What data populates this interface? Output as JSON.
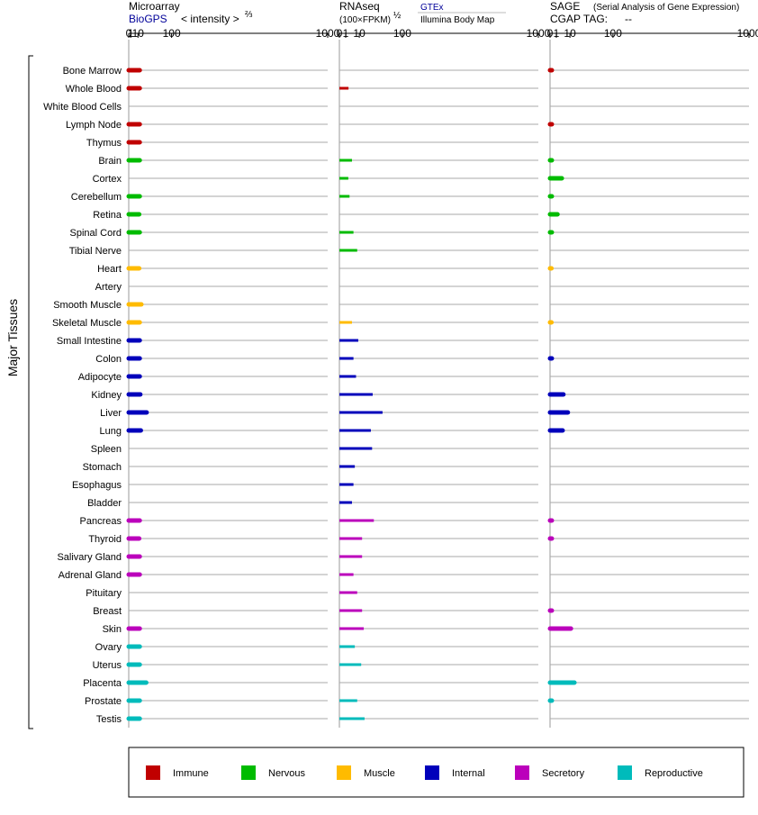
{
  "panels": {
    "microarray": {
      "title": "Microarray",
      "source": "BioGPS",
      "scale_label": "< intensity >",
      "scale_exp": "⅔",
      "ticks": [
        "0",
        "1",
        "10",
        "100",
        "1000"
      ]
    },
    "rnaseq": {
      "title": "RNAseq",
      "scale_label": "(100×FPKM)",
      "scale_exp": "½",
      "source1": "GTEx",
      "source2": "Illumina Body Map",
      "ticks": [
        "0",
        "1",
        "10",
        "100",
        "1000"
      ]
    },
    "sage": {
      "title": "SAGE",
      "subtitle": "(Serial Analysis of Gene Expression)",
      "cgap_label": "CGAP TAG:",
      "cgap_value": "--",
      "ticks": [
        "0",
        "1",
        "10",
        "100",
        "1000"
      ]
    }
  },
  "side_label": "Major Tissues",
  "legend": [
    {
      "name": "Immune",
      "color": "#c00000"
    },
    {
      "name": "Nervous",
      "color": "#00bb00"
    },
    {
      "name": "Muscle",
      "color": "#ffbb00"
    },
    {
      "name": "Internal",
      "color": "#0000bb"
    },
    {
      "name": "Secretory",
      "color": "#bb00bb"
    },
    {
      "name": "Reproductive",
      "color": "#00bbbb"
    }
  ],
  "chart_data": {
    "type": "bar",
    "x_scale": "power",
    "xlim": [
      0,
      1000
    ],
    "categories": [
      "Bone Marrow",
      "Whole Blood",
      "White Blood Cells",
      "Lymph Node",
      "Thymus",
      "Brain",
      "Cortex",
      "Cerebellum",
      "Retina",
      "Spinal Cord",
      "Tibial Nerve",
      "Heart",
      "Artery",
      "Smooth Muscle",
      "Skeletal Muscle",
      "Small Intestine",
      "Colon",
      "Adipocyte",
      "Kidney",
      "Liver",
      "Lung",
      "Spleen",
      "Stomach",
      "Esophagus",
      "Bladder",
      "Pancreas",
      "Thyroid",
      "Salivary Gland",
      "Adrenal Gland",
      "Pituitary",
      "Breast",
      "Skin",
      "Ovary",
      "Uterus",
      "Placenta",
      "Prostate",
      "Testis"
    ],
    "groups": [
      "Immune",
      "Immune",
      "Immune",
      "Immune",
      "Immune",
      "Nervous",
      "Nervous",
      "Nervous",
      "Nervous",
      "Nervous",
      "Nervous",
      "Muscle",
      "Muscle",
      "Muscle",
      "Muscle",
      "Internal",
      "Internal",
      "Internal",
      "Internal",
      "Internal",
      "Internal",
      "Internal",
      "Internal",
      "Internal",
      "Internal",
      "Secretory",
      "Secretory",
      "Secretory",
      "Secretory",
      "Secretory",
      "Secretory",
      "Secretory",
      "Reproductive",
      "Reproductive",
      "Reproductive",
      "Reproductive",
      "Reproductive"
    ],
    "series": [
      {
        "name": "Microarray",
        "values": [
          13,
          13,
          null,
          13,
          13,
          13,
          null,
          13,
          12,
          13,
          null,
          12,
          null,
          16,
          13,
          13,
          13,
          13,
          14,
          27,
          15,
          null,
          null,
          null,
          null,
          13,
          12,
          13,
          13,
          null,
          null,
          13,
          13,
          13,
          26,
          13,
          13
        ]
      },
      {
        "name": "RNAseq",
        "values": [
          null,
          2.1,
          null,
          null,
          null,
          4,
          2,
          2.6,
          null,
          5,
          8,
          null,
          null,
          null,
          4,
          9,
          5,
          7,
          28,
          47,
          25,
          27,
          6,
          5,
          4,
          30,
          13,
          13,
          5,
          8,
          13,
          15,
          6,
          12,
          null,
          8,
          16
        ]
      },
      {
        "name": "SAGE",
        "values": [
          0.08,
          null,
          null,
          0.08,
          null,
          0.08,
          3.5,
          0.08,
          1.4,
          0.08,
          null,
          0.05,
          null,
          null,
          0.05,
          null,
          0.08,
          null,
          4.5,
          8,
          4,
          null,
          null,
          null,
          null,
          0.08,
          0.08,
          null,
          null,
          null,
          0.08,
          11,
          null,
          null,
          15,
          0.08,
          null
        ]
      }
    ]
  }
}
